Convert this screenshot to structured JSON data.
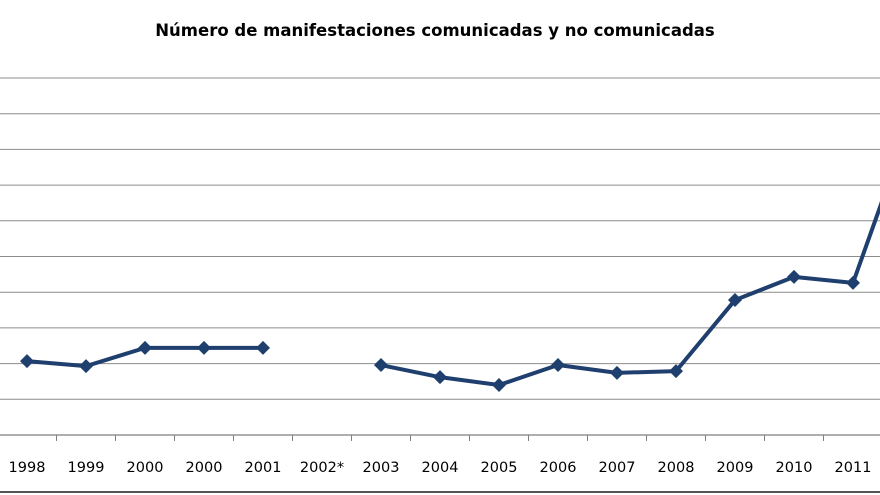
{
  "chart_data": {
    "type": "line",
    "title": "Número de manifestaciones comunicadas y no comunicadas",
    "xlabel": "",
    "ylabel": "",
    "categories": [
      "1998",
      "1999",
      "2000",
      "2000",
      "2001",
      "2002*",
      "2003",
      "2004",
      "2005",
      "2006",
      "2007",
      "2008",
      "2009",
      "2010",
      "2011",
      ""
    ],
    "series": [
      {
        "values": [
          2.07,
          1.93,
          2.44,
          2.44,
          2.44,
          null,
          1.96,
          1.62,
          1.4,
          1.96,
          1.74,
          1.79,
          3.78,
          4.43,
          4.26,
          8.9
        ]
      }
    ],
    "ylim": [
      0,
      10
    ],
    "y_ticks_labeled": false,
    "grid": true,
    "legend": "none",
    "colors": {
      "line": "#1f3f6e",
      "grid": "#8c8c8c",
      "axis": "#7f7f7f"
    }
  }
}
